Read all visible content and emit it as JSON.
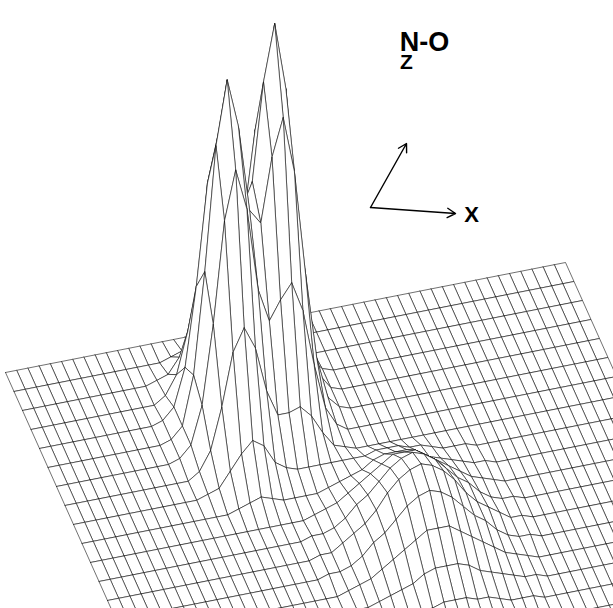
{
  "chart_data": {
    "type": "surface",
    "title": "N-O",
    "xlabel": "X",
    "zlabel": "Z",
    "tick_labels": false,
    "height": [
      [
        0,
        0,
        0,
        0,
        0,
        0,
        0,
        0,
        0,
        0,
        0,
        0,
        0,
        0,
        0,
        0,
        0,
        0,
        1,
        1,
        2,
        3,
        2,
        1,
        1,
        0,
        0,
        0,
        0,
        0,
        0,
        0,
        0,
        0,
        0,
        0,
        0,
        0,
        0,
        0,
        0,
        0,
        0,
        0,
        0,
        0,
        0,
        0,
        0,
        0,
        0
      ],
      [
        0,
        0,
        0,
        0,
        0,
        0,
        0,
        0,
        0,
        0,
        0,
        0,
        0,
        0,
        1,
        2,
        3,
        3,
        4,
        7,
        11,
        14,
        11,
        6,
        2,
        1,
        0,
        0,
        0,
        0,
        0,
        0,
        0,
        0,
        0,
        0,
        0,
        0,
        0,
        0,
        0,
        0,
        0,
        0,
        0,
        0,
        0,
        0,
        0,
        0,
        0
      ],
      [
        0,
        0,
        0,
        0,
        0,
        0,
        0,
        0,
        0,
        0,
        0,
        0,
        1,
        2,
        6,
        10,
        13,
        12,
        13,
        22,
        35,
        41,
        34,
        19,
        7,
        2,
        0,
        0,
        0,
        0,
        0,
        0,
        0,
        0,
        0,
        0,
        0,
        0,
        0,
        0,
        0,
        0,
        0,
        0,
        0,
        0,
        0,
        0,
        0,
        0,
        0
      ],
      [
        0,
        0,
        0,
        0,
        0,
        0,
        0,
        0,
        0,
        0,
        0,
        0,
        2,
        7,
        18,
        32,
        39,
        35,
        32,
        45,
        68,
        80,
        66,
        38,
        15,
        4,
        1,
        0,
        0,
        0,
        0,
        0,
        0,
        0,
        0,
        0,
        0,
        0,
        0,
        0,
        0,
        0,
        0,
        0,
        0,
        0,
        0,
        0,
        0,
        0,
        0
      ],
      [
        0,
        0,
        0,
        0,
        0,
        0,
        0,
        0,
        0,
        0,
        0,
        1,
        4,
        14,
        35,
        62,
        75,
        66,
        53,
        60,
        86,
        101,
        83,
        47,
        18,
        5,
        1,
        0,
        0,
        0,
        0,
        0,
        0,
        0,
        0,
        0,
        0,
        0,
        0,
        0,
        0,
        0,
        0,
        0,
        0,
        0,
        0,
        0,
        0,
        0,
        0
      ],
      [
        0,
        0,
        0,
        0,
        0,
        0,
        0,
        0,
        0,
        0,
        0,
        1,
        4,
        17,
        44,
        77,
        94,
        81,
        58,
        54,
        71,
        81,
        66,
        38,
        15,
        4,
        1,
        0,
        0,
        0,
        0,
        0,
        0,
        0,
        0,
        0,
        0,
        0,
        0,
        0,
        0,
        0,
        0,
        0,
        0,
        0,
        0,
        0,
        0,
        0,
        0
      ],
      [
        0,
        0,
        0,
        0,
        0,
        0,
        0,
        0,
        0,
        0,
        0,
        1,
        4,
        14,
        35,
        62,
        75,
        64,
        42,
        33,
        38,
        42,
        34,
        19,
        7,
        2,
        0,
        0,
        0,
        0,
        0,
        0,
        0,
        0,
        0,
        0,
        0,
        0,
        0,
        0,
        0,
        0,
        0,
        0,
        0,
        0,
        0,
        0,
        0,
        0,
        0
      ],
      [
        0,
        0,
        0,
        0,
        0,
        0,
        0,
        0,
        0,
        0,
        0,
        0,
        2,
        7,
        18,
        32,
        38,
        32,
        20,
        13,
        13,
        14,
        11,
        6,
        2,
        1,
        0,
        0,
        0,
        0,
        0,
        0,
        0,
        0,
        0,
        0,
        0,
        0,
        0,
        0,
        0,
        0,
        0,
        0,
        0,
        0,
        0,
        0,
        0,
        0,
        0
      ],
      [
        0,
        0,
        0,
        0,
        0,
        0,
        0,
        0,
        0,
        0,
        0,
        0,
        1,
        2,
        6,
        10,
        13,
        11,
        6,
        4,
        3,
        3,
        3,
        3,
        3,
        3,
        3,
        4,
        4,
        4,
        3,
        3,
        2,
        1,
        1,
        1,
        0,
        0,
        0,
        0,
        0,
        0,
        0,
        0,
        0,
        0,
        0,
        0,
        0,
        0,
        0
      ],
      [
        0,
        0,
        0,
        0,
        0,
        0,
        0,
        0,
        0,
        0,
        0,
        0,
        0,
        0,
        1,
        2,
        3,
        2,
        1,
        1,
        1,
        1,
        2,
        3,
        4,
        5,
        7,
        8,
        8,
        8,
        7,
        5,
        4,
        3,
        2,
        1,
        1,
        0,
        0,
        0,
        0,
        0,
        0,
        0,
        0,
        0,
        0,
        0,
        0,
        0,
        0
      ],
      [
        0,
        0,
        0,
        0,
        0,
        0,
        0,
        0,
        0,
        0,
        0,
        0,
        0,
        0,
        0,
        0,
        0,
        0,
        0,
        0,
        1,
        2,
        3,
        5,
        7,
        9,
        11,
        13,
        13,
        13,
        11,
        9,
        7,
        5,
        3,
        2,
        1,
        0,
        0,
        0,
        0,
        0,
        0,
        0,
        0,
        0,
        0,
        0,
        0,
        0,
        0
      ],
      [
        0,
        0,
        0,
        0,
        0,
        0,
        0,
        0,
        0,
        0,
        0,
        0,
        0,
        0,
        0,
        0,
        0,
        0,
        0,
        1,
        1,
        2,
        4,
        7,
        9,
        12,
        15,
        17,
        18,
        17,
        15,
        12,
        9,
        7,
        4,
        2,
        1,
        1,
        0,
        0,
        0,
        0,
        0,
        0,
        0,
        0,
        0,
        0,
        0,
        0,
        0
      ],
      [
        0,
        0,
        0,
        0,
        0,
        0,
        0,
        0,
        0,
        0,
        0,
        0,
        0,
        0,
        0,
        0,
        0,
        0,
        0,
        1,
        1,
        3,
        5,
        7,
        10,
        14,
        17,
        19,
        20,
        19,
        17,
        14,
        10,
        7,
        5,
        3,
        1,
        1,
        0,
        0,
        0,
        0,
        0,
        0,
        0,
        0,
        0,
        0,
        0,
        0,
        0
      ],
      [
        0,
        0,
        0,
        0,
        0,
        0,
        0,
        0,
        0,
        0,
        0,
        0,
        0,
        0,
        0,
        0,
        0,
        0,
        0,
        1,
        1,
        2,
        4,
        7,
        9,
        12,
        15,
        17,
        18,
        17,
        15,
        12,
        9,
        7,
        4,
        2,
        1,
        1,
        0,
        0,
        0,
        0,
        0,
        0,
        0,
        0,
        0,
        0,
        0,
        0,
        0
      ],
      [
        0,
        0,
        0,
        0,
        0,
        0,
        0,
        0,
        0,
        0,
        0,
        0,
        0,
        0,
        0,
        0,
        0,
        0,
        0,
        0,
        1,
        2,
        3,
        5,
        7,
        9,
        11,
        13,
        13,
        13,
        11,
        9,
        7,
        5,
        3,
        2,
        1,
        0,
        0,
        0,
        0,
        0,
        0,
        0,
        0,
        0,
        0,
        0,
        0,
        0,
        0
      ],
      [
        0,
        0,
        0,
        0,
        0,
        0,
        0,
        0,
        0,
        0,
        0,
        0,
        0,
        0,
        0,
        0,
        0,
        0,
        0,
        0,
        1,
        1,
        2,
        3,
        4,
        5,
        7,
        8,
        8,
        8,
        7,
        5,
        4,
        3,
        2,
        1,
        1,
        0,
        0,
        0,
        0,
        0,
        0,
        0,
        0,
        0,
        0,
        0,
        0,
        0,
        0
      ],
      [
        0,
        0,
        0,
        0,
        0,
        0,
        0,
        0,
        0,
        0,
        0,
        0,
        0,
        0,
        0,
        0,
        0,
        0,
        0,
        0,
        0,
        1,
        1,
        1,
        2,
        3,
        3,
        4,
        4,
        4,
        3,
        3,
        2,
        1,
        1,
        1,
        0,
        0,
        0,
        0,
        0,
        0,
        0,
        0,
        0,
        0,
        0,
        0,
        0,
        0,
        0
      ],
      [
        0,
        0,
        0,
        0,
        0,
        0,
        0,
        0,
        0,
        0,
        0,
        0,
        0,
        0,
        0,
        0,
        0,
        0,
        0,
        0,
        0,
        0,
        0,
        1,
        1,
        1,
        1,
        1,
        2,
        1,
        1,
        1,
        1,
        1,
        0,
        0,
        0,
        0,
        0,
        0,
        0,
        0,
        0,
        0,
        0,
        0,
        0,
        0,
        0,
        0,
        0
      ],
      [
        0,
        0,
        0,
        0,
        0,
        0,
        0,
        0,
        0,
        0,
        0,
        0,
        0,
        0,
        0,
        0,
        0,
        0,
        0,
        0,
        0,
        0,
        0,
        0,
        0,
        0,
        0,
        0,
        0,
        0,
        0,
        0,
        0,
        0,
        0,
        0,
        0,
        0,
        0,
        0,
        0,
        0,
        0,
        0,
        0,
        0,
        0,
        0,
        0,
        0,
        0
      ],
      [
        0,
        0,
        0,
        0,
        0,
        0,
        0,
        0,
        0,
        0,
        0,
        0,
        0,
        0,
        0,
        0,
        0,
        0,
        0,
        0,
        0,
        0,
        0,
        0,
        0,
        0,
        0,
        0,
        0,
        0,
        0,
        0,
        0,
        0,
        0,
        0,
        0,
        0,
        0,
        0,
        0,
        0,
        0,
        0,
        0,
        0,
        0,
        0,
        0,
        0,
        0
      ],
      [
        0,
        0,
        0,
        0,
        0,
        0,
        0,
        0,
        0,
        0,
        0,
        0,
        0,
        0,
        0,
        0,
        0,
        0,
        0,
        0,
        0,
        0,
        0,
        0,
        0,
        0,
        0,
        0,
        0,
        0,
        0,
        0,
        0,
        0,
        0,
        0,
        0,
        0,
        0,
        0,
        0,
        0,
        0,
        0,
        0,
        0,
        0,
        0,
        0,
        0,
        0
      ]
    ]
  }
}
